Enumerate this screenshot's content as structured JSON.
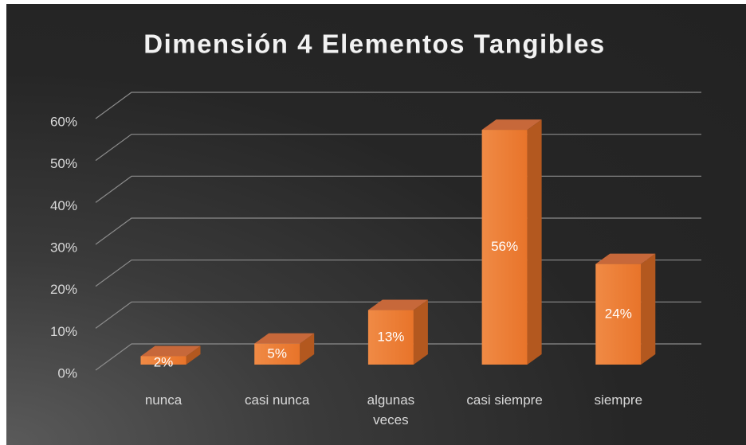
{
  "chart_data": {
    "type": "bar",
    "title": "Dimensión 4 Elementos Tangibles",
    "categories": [
      "nunca",
      "casi nunca",
      "algunas veces",
      "casi siempre",
      "siempre"
    ],
    "values": [
      2,
      5,
      13,
      56,
      24
    ],
    "value_labels": [
      "2%",
      "5%",
      "13%",
      "56%",
      "24%"
    ],
    "color": "#ed7d31",
    "ylim": [
      0,
      60
    ],
    "yticks": [
      {
        "value": 0,
        "label": "0%"
      },
      {
        "value": 10,
        "label": "10%"
      },
      {
        "value": 20,
        "label": "20%"
      },
      {
        "value": 30,
        "label": "30%"
      },
      {
        "value": 40,
        "label": "40%"
      },
      {
        "value": 50,
        "label": "50%"
      },
      {
        "value": 60,
        "label": "60%"
      }
    ],
    "grid": true
  }
}
